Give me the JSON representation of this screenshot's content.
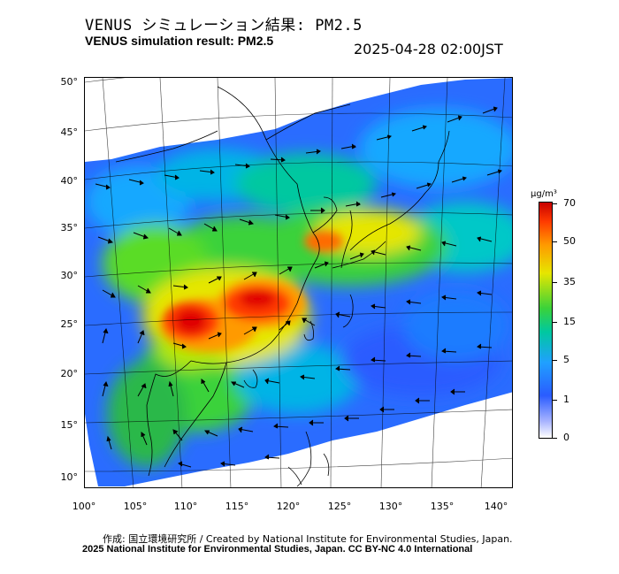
{
  "header": {
    "title_jp": "VENUS シミュレーション結果: PM2.5",
    "title_en": "VENUS simulation result: PM2.5",
    "timestamp": "2025-04-28 02:00JST"
  },
  "map": {
    "lat_labels": [
      "50°",
      "45°",
      "40°",
      "35°",
      "30°",
      "25°",
      "20°",
      "15°",
      "10°"
    ],
    "lon_labels": [
      "100°",
      "105°",
      "110°",
      "115°",
      "120°",
      "125°",
      "130°",
      "135°",
      "140°"
    ]
  },
  "colorbar": {
    "unit": "µg/m³",
    "ticks": [
      "70",
      "50",
      "35",
      "15",
      "5",
      "1",
      "0"
    ],
    "colors": [
      "#c80000",
      "#ff3a00",
      "#ff9a00",
      "#e6e600",
      "#3ad23a",
      "#00c8a0",
      "#20a0ff",
      "#2a5cff",
      "#a8b4ff",
      "#ffffff"
    ]
  },
  "footer": {
    "credit_line_1": "作成: 国立環境研究所 / Created by National Institute for Environmental Studies, Japan.",
    "credit_line_2": "2025 National Institute for Environmental Studies, Japan. CC BY-NC 4.0 International"
  }
}
